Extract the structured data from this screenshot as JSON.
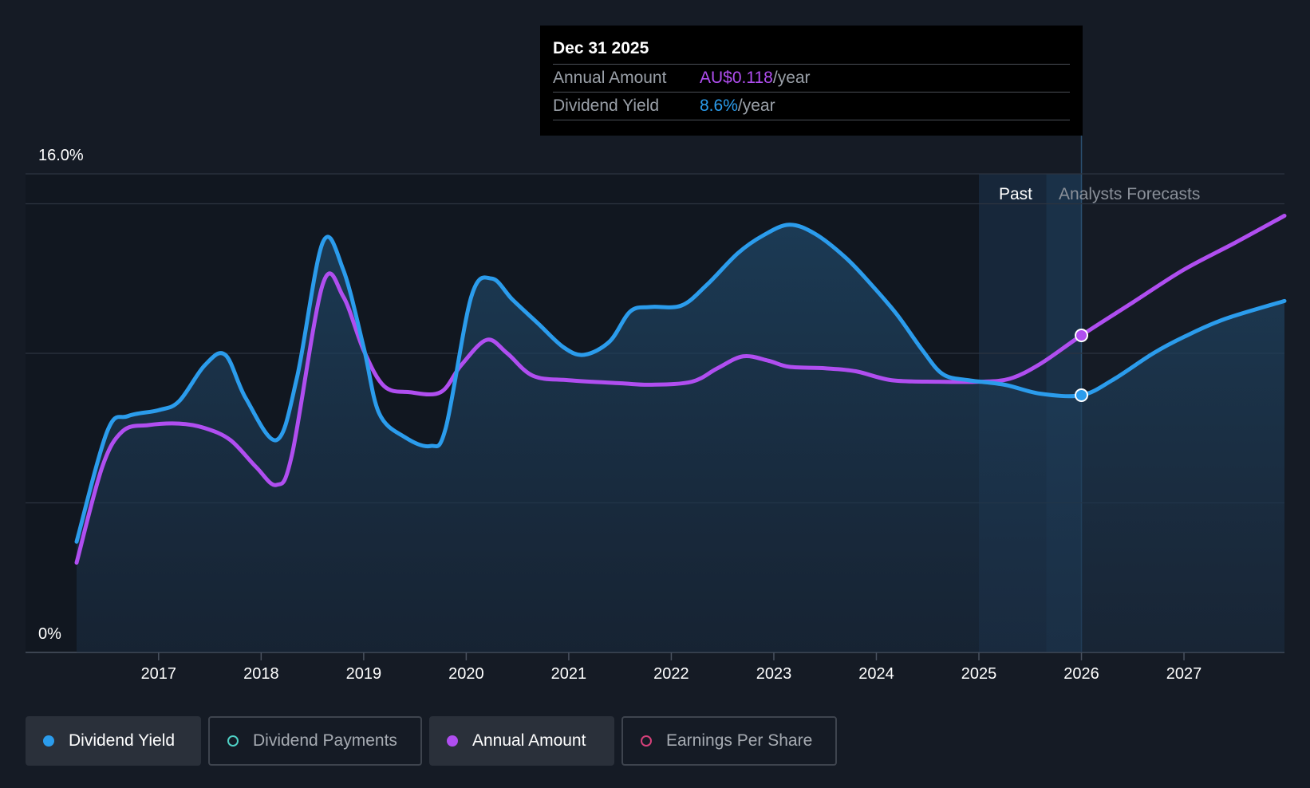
{
  "tooltip": {
    "date": "Dec 31 2025",
    "rows": [
      {
        "label": "Annual Amount",
        "value": "AU$0.118",
        "unit": "/year"
      },
      {
        "label": "Dividend Yield",
        "value": "8.6%",
        "unit": "/year"
      }
    ]
  },
  "region_labels": {
    "past": "Past",
    "forecast": "Analysts Forecasts"
  },
  "legend": [
    {
      "label": "Dividend Yield",
      "color": "#2b9cec",
      "active": true
    },
    {
      "label": "Dividend Payments",
      "color": "#4fd1c5",
      "active": false
    },
    {
      "label": "Annual Amount",
      "color": "#b04ef0",
      "active": true
    },
    {
      "label": "Earnings Per Share",
      "color": "#d6407a",
      "active": false
    }
  ],
  "chart_data": {
    "type": "line",
    "y_axis": {
      "min": 0,
      "max": 16,
      "top_label": "16.0%",
      "bottom_label": "0%",
      "gridlines": [
        0,
        5,
        10,
        15,
        16
      ]
    },
    "x_axis": {
      "min": 2016.2,
      "max": 2027.98,
      "ticks": [
        "2017",
        "2018",
        "2019",
        "2020",
        "2021",
        "2022",
        "2023",
        "2024",
        "2025",
        "2026",
        "2027"
      ]
    },
    "past_region_start": 2025.0,
    "forecast_start": 2026.0,
    "highlight_x": 2026.0,
    "series": [
      {
        "name": "Dividend Yield",
        "color": "#2b9cec",
        "unit": "%",
        "points": [
          [
            2016.2,
            3.7
          ],
          [
            2016.5,
            7.4
          ],
          [
            2016.7,
            7.9
          ],
          [
            2017.0,
            8.1
          ],
          [
            2017.2,
            8.4
          ],
          [
            2017.45,
            9.6
          ],
          [
            2017.65,
            9.95
          ],
          [
            2017.85,
            8.5
          ],
          [
            2018.15,
            7.1
          ],
          [
            2018.35,
            9.2
          ],
          [
            2018.6,
            13.7
          ],
          [
            2018.8,
            12.8
          ],
          [
            2019.0,
            10.2
          ],
          [
            2019.15,
            8.0
          ],
          [
            2019.4,
            7.2
          ],
          [
            2019.65,
            6.9
          ],
          [
            2019.8,
            7.5
          ],
          [
            2020.05,
            11.9
          ],
          [
            2020.25,
            12.5
          ],
          [
            2020.45,
            11.8
          ],
          [
            2020.7,
            11.0
          ],
          [
            2020.95,
            10.2
          ],
          [
            2021.15,
            9.95
          ],
          [
            2021.4,
            10.4
          ],
          [
            2021.6,
            11.4
          ],
          [
            2021.8,
            11.55
          ],
          [
            2022.1,
            11.6
          ],
          [
            2022.35,
            12.3
          ],
          [
            2022.65,
            13.35
          ],
          [
            2022.9,
            13.95
          ],
          [
            2023.15,
            14.3
          ],
          [
            2023.4,
            14.0
          ],
          [
            2023.7,
            13.2
          ],
          [
            2023.95,
            12.3
          ],
          [
            2024.2,
            11.3
          ],
          [
            2024.45,
            10.1
          ],
          [
            2024.65,
            9.3
          ],
          [
            2024.9,
            9.1
          ],
          [
            2025.25,
            8.95
          ],
          [
            2025.6,
            8.65
          ],
          [
            2026.0,
            8.6
          ],
          [
            2026.3,
            9.1
          ],
          [
            2026.7,
            10.0
          ],
          [
            2027.0,
            10.55
          ],
          [
            2027.4,
            11.15
          ],
          [
            2027.98,
            11.75
          ]
        ]
      },
      {
        "name": "Annual Amount",
        "color": "#b04ef0",
        "unit": "AU$",
        "points": [
          [
            2016.2,
            3.0
          ],
          [
            2016.45,
            6.2
          ],
          [
            2016.65,
            7.4
          ],
          [
            2016.9,
            7.6
          ],
          [
            2017.2,
            7.65
          ],
          [
            2017.45,
            7.5
          ],
          [
            2017.7,
            7.1
          ],
          [
            2017.95,
            6.2
          ],
          [
            2018.15,
            5.6
          ],
          [
            2018.3,
            6.6
          ],
          [
            2018.6,
            12.3
          ],
          [
            2018.8,
            11.9
          ],
          [
            2019.0,
            10.1
          ],
          [
            2019.2,
            8.9
          ],
          [
            2019.45,
            8.7
          ],
          [
            2019.75,
            8.7
          ],
          [
            2019.95,
            9.6
          ],
          [
            2020.2,
            10.45
          ],
          [
            2020.4,
            10.0
          ],
          [
            2020.65,
            9.25
          ],
          [
            2021.0,
            9.1
          ],
          [
            2021.5,
            9.0
          ],
          [
            2021.8,
            8.95
          ],
          [
            2022.2,
            9.05
          ],
          [
            2022.45,
            9.5
          ],
          [
            2022.7,
            9.9
          ],
          [
            2022.95,
            9.75
          ],
          [
            2023.15,
            9.55
          ],
          [
            2023.5,
            9.5
          ],
          [
            2023.8,
            9.4
          ],
          [
            2024.15,
            9.1
          ],
          [
            2024.6,
            9.05
          ],
          [
            2025.0,
            9.05
          ],
          [
            2025.3,
            9.15
          ],
          [
            2025.6,
            9.65
          ],
          [
            2026.0,
            10.6
          ],
          [
            2026.5,
            11.7
          ],
          [
            2027.0,
            12.8
          ],
          [
            2027.5,
            13.7
          ],
          [
            2027.98,
            14.6
          ]
        ]
      }
    ]
  }
}
